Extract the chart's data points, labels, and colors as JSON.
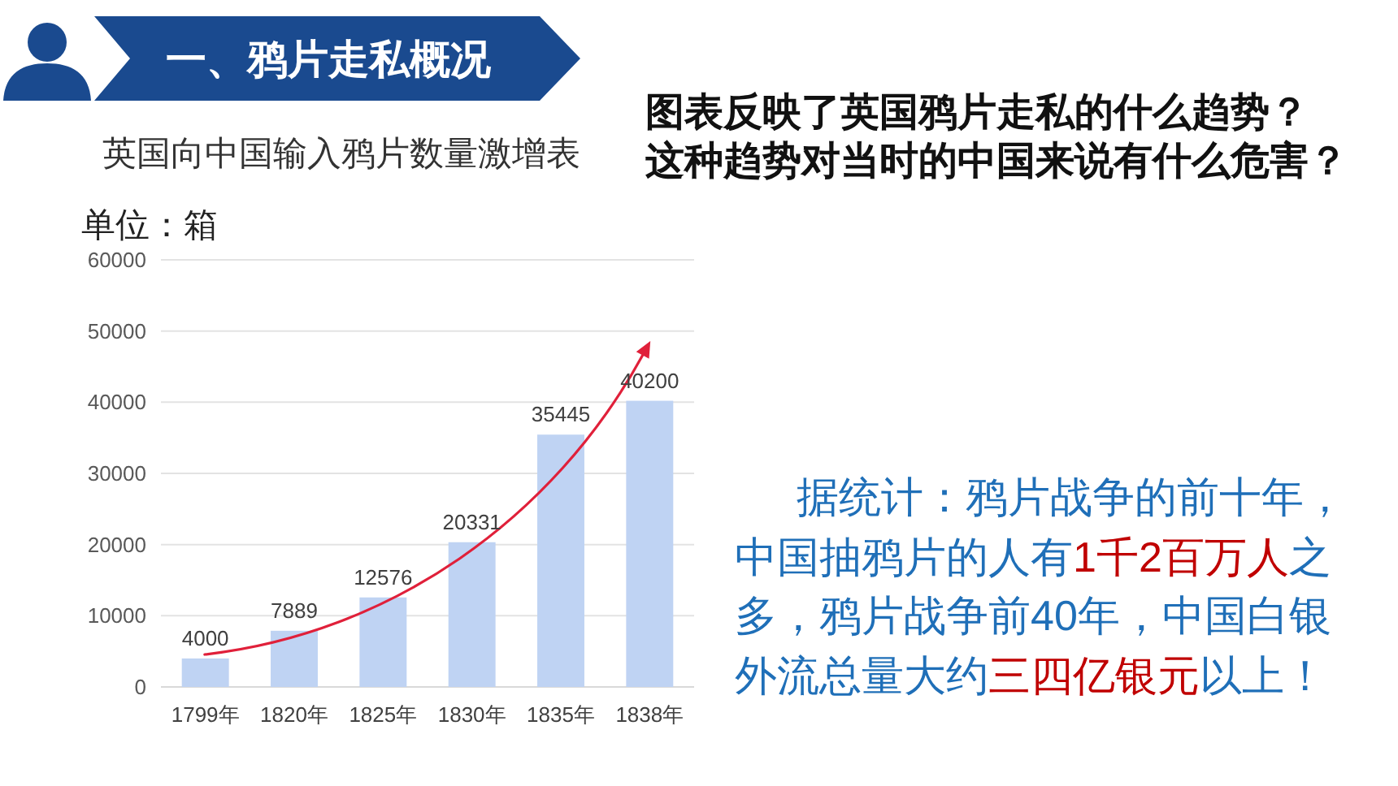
{
  "chart_data": {
    "type": "bar",
    "title": "英国向中国输入鸦片数量激增表",
    "ylabel": "单位：箱",
    "categories": [
      "1799年",
      "1820年",
      "1825年",
      "1830年",
      "1835年",
      "1838年"
    ],
    "values": [
      4000,
      7889,
      12576,
      20331,
      35445,
      40200
    ],
    "color": "#bfd3f3",
    "ylim": [
      0,
      60000
    ],
    "yticks": [
      0,
      10000,
      20000,
      30000,
      40000,
      50000,
      60000
    ],
    "grid": "y",
    "data_labels": true,
    "annotations": [
      "一、鸦片走私概况",
      "图表反映了英国鸦片走私的什么趋势？",
      "这种趋势对当时的中国来说有什么危害？",
      "据统计：鸦片战争的前十年，",
      "中国抽鸦片的人有",
      "1千2百万人",
      "之",
      "多，鸦片战争前40年，中国白银",
      "外流总量大约",
      "三四亿银元",
      "以上！"
    ]
  }
}
